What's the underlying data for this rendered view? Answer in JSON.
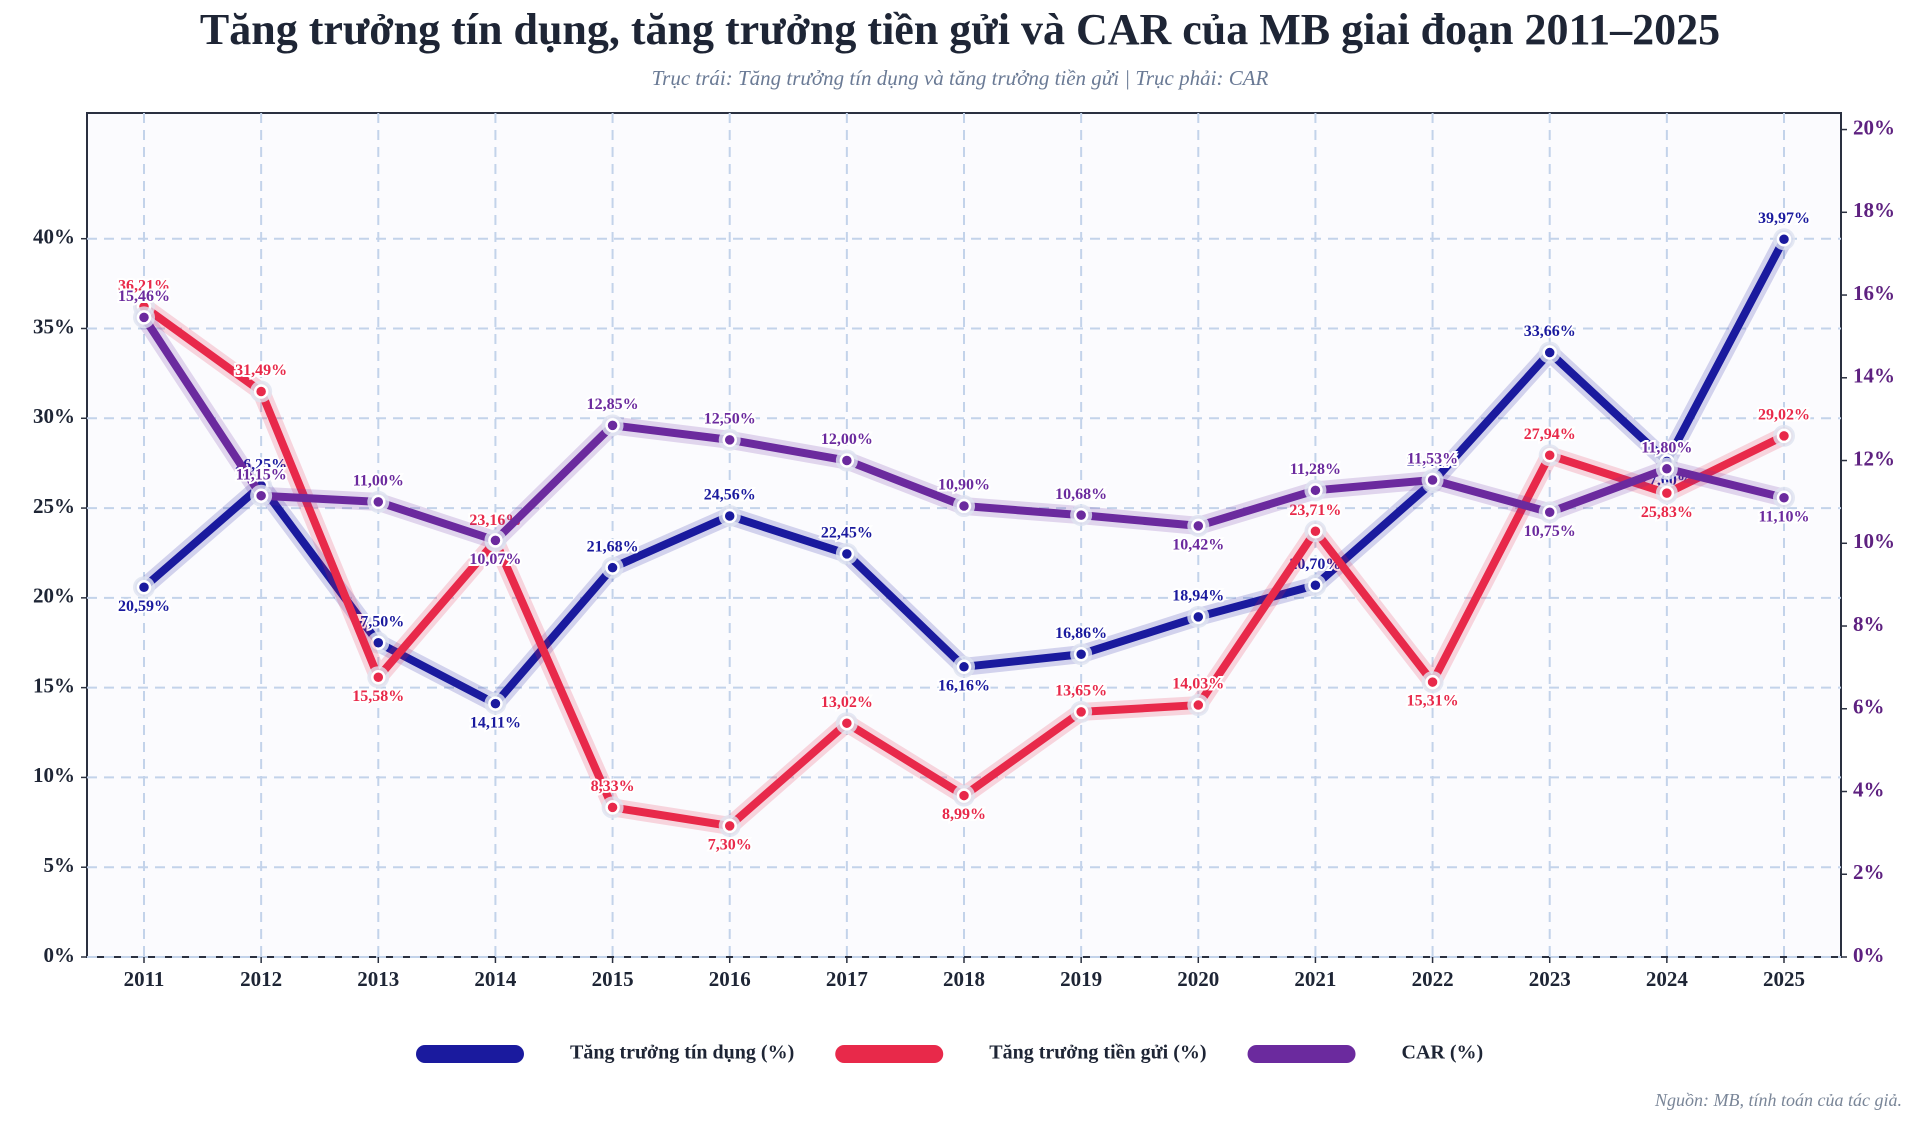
{
  "chart_data": {
    "type": "line",
    "title": "Tăng trưởng tín dụng, tăng trưởng tiền gửi và CAR của MB giai đoạn 2011–2025",
    "subtitle": "Trục trái: Tăng trưởng tín dụng và tăng trưởng tiền gửi | Trục phải: CAR",
    "source": "Nguồn: MB, tính toán của tác giả.",
    "categories": [
      "2011",
      "2012",
      "2013",
      "2014",
      "2015",
      "2016",
      "2017",
      "2018",
      "2019",
      "2020",
      "2021",
      "2022",
      "2023",
      "2024",
      "2025"
    ],
    "series": [
      {
        "name": "Tăng trưởng tín dụng (%)",
        "color": "#1a1a9e",
        "values": [
          20.59,
          26.25,
          17.5,
          14.11,
          21.68,
          24.56,
          22.45,
          16.16,
          16.86,
          18.94,
          20.7,
          26.44,
          33.66,
          27.6,
          39.97
        ],
        "value_labels": [
          "20,59%",
          "26,25%",
          "17,50%",
          "14,11%",
          "21,68%",
          "24,56%",
          "22,45%",
          "16,16%",
          "16,86%",
          "18,94%",
          "20,70%",
          "26,44%",
          "33,66%",
          "27,60%",
          "39,97%"
        ]
      },
      {
        "name": "Tăng trưởng tiền gửi (%)",
        "color": "#e8294a",
        "values": [
          36.21,
          31.49,
          15.58,
          23.16,
          8.33,
          7.3,
          13.02,
          8.99,
          13.65,
          14.03,
          23.71,
          15.31,
          27.94,
          25.83,
          29.02
        ],
        "value_labels": [
          "36,21%",
          "31,49%",
          "15,58%",
          "23,16%",
          "8,33%",
          "7,30%",
          "13,02%",
          "8,99%",
          "13,65%",
          "14,03%",
          "23,71%",
          "15,31%",
          "27,94%",
          "25,83%",
          "29,02%"
        ]
      },
      {
        "name": "CAR (%)",
        "color": "#6b2a9e",
        "axis": "y2",
        "values": [
          15.46,
          11.15,
          11.0,
          10.07,
          12.85,
          12.5,
          12.0,
          10.9,
          10.68,
          10.42,
          11.28,
          11.53,
          10.75,
          11.8,
          11.1
        ],
        "value_labels": [
          "15,46%",
          "11,15%",
          "11,00%",
          "10,07%",
          "12,85%",
          "12,50%",
          "12,00%",
          "10,90%",
          "10,68%",
          "10,42%",
          "11,28%",
          "11,53%",
          "10,75%",
          "11,80%",
          "11,10%"
        ]
      }
    ],
    "ylim": [
      0,
      47
    ],
    "yticks": [
      {
        "value": 0,
        "label": "0%"
      },
      {
        "value": 5,
        "label": "5%"
      },
      {
        "value": 10,
        "label": "10%"
      },
      {
        "value": 15,
        "label": "15%"
      },
      {
        "value": 20,
        "label": "20%"
      },
      {
        "value": 25,
        "label": "25%"
      },
      {
        "value": 30,
        "label": "30%"
      },
      {
        "value": 35,
        "label": "35%"
      },
      {
        "value": 40,
        "label": "40%"
      }
    ],
    "y2lim": [
      0,
      20.4
    ],
    "y2ticks": [
      {
        "value": 0,
        "label": "0%"
      },
      {
        "value": 2,
        "label": "2%"
      },
      {
        "value": 4,
        "label": "4%"
      },
      {
        "value": 6,
        "label": "6%"
      },
      {
        "value": 8,
        "label": "8%"
      },
      {
        "value": 10,
        "label": "10%"
      },
      {
        "value": 12,
        "label": "12%"
      },
      {
        "value": 14,
        "label": "14%"
      },
      {
        "value": 16,
        "label": "16%"
      },
      {
        "value": 18,
        "label": "18%"
      },
      {
        "value": 20,
        "label": "20%"
      }
    ],
    "grid": true,
    "legend": "bottom"
  }
}
